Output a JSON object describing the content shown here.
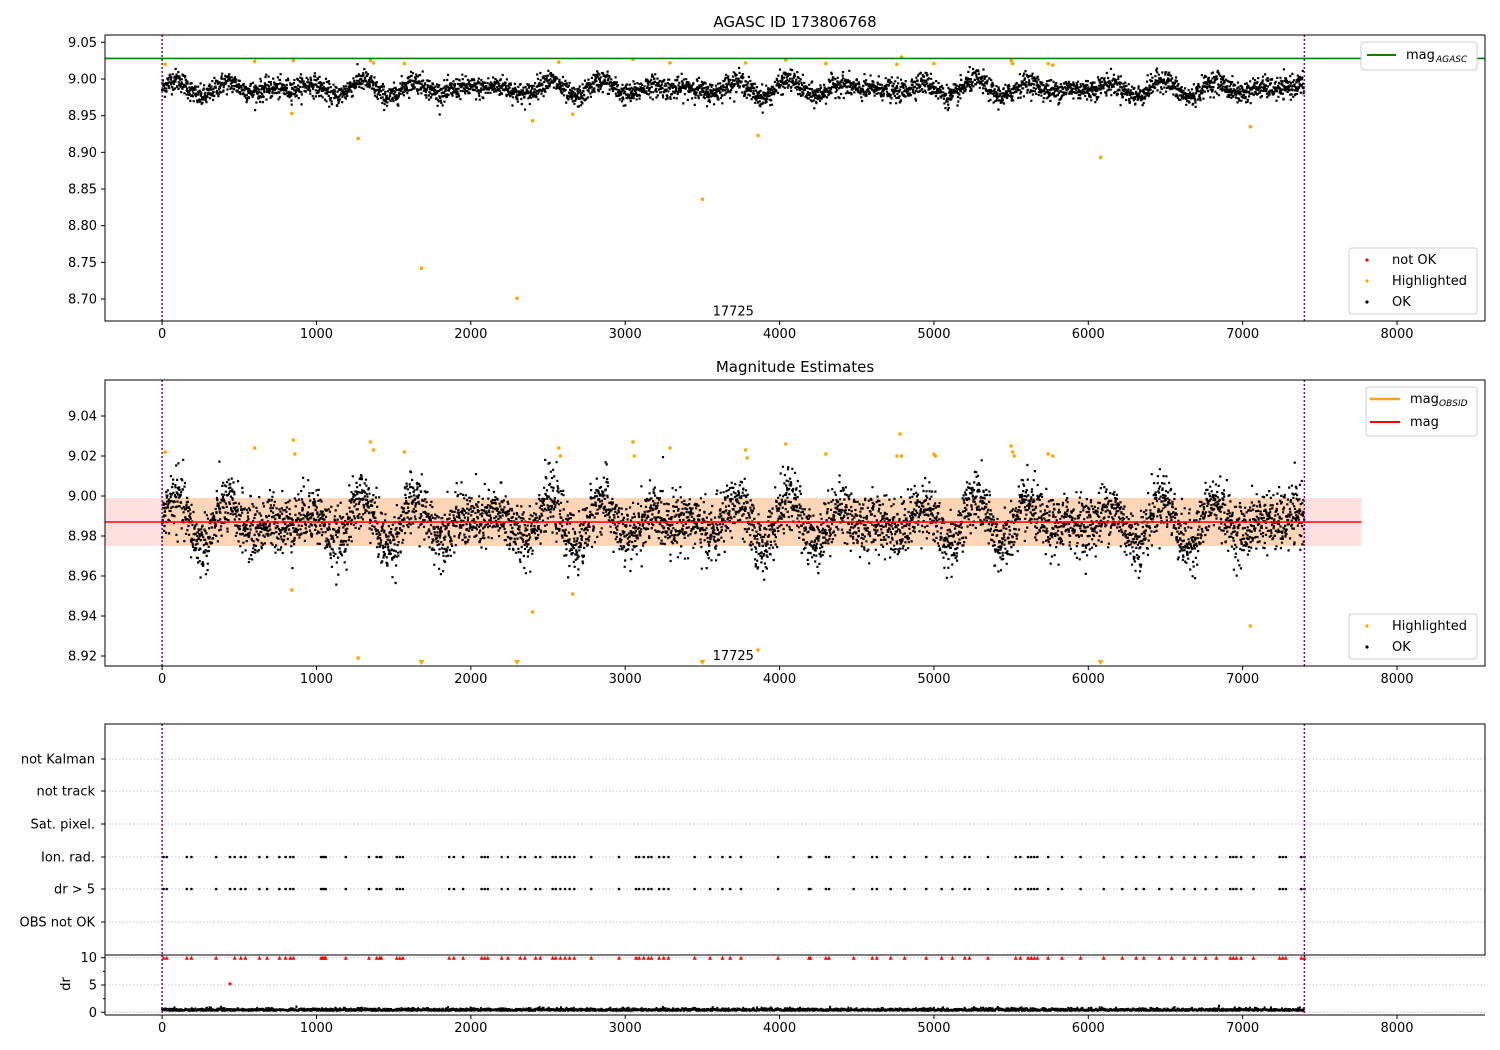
{
  "chart_data": [
    {
      "type": "scatter",
      "title": "AGASC ID 173806768",
      "xlim": [
        -370,
        8570
      ],
      "ylim": [
        8.67,
        9.06
      ],
      "x_ticks": [
        0,
        1000,
        2000,
        3000,
        4000,
        5000,
        6000,
        7000,
        8000
      ],
      "x_tick_labels": [
        "0",
        "1000",
        "2000",
        "3000",
        "4000",
        "5000",
        "6000",
        "7000",
        "8000"
      ],
      "y_ticks": [
        8.7,
        8.75,
        8.8,
        8.85,
        8.9,
        8.95,
        9.0,
        9.05
      ],
      "y_tick_labels": [
        "8.70",
        "8.75",
        "8.80",
        "8.85",
        "8.90",
        "8.95",
        "9.00",
        "9.05"
      ],
      "reference_line": {
        "name": "mag",
        "subscript": "AGASC",
        "y": 9.028,
        "color": "#008000"
      },
      "obs_boundaries": {
        "x": [
          0,
          7400
        ],
        "color": "#800080"
      },
      "annotation": {
        "text": "17725",
        "x": 3700,
        "y": 8.683
      },
      "ok_band": {
        "center": 8.987,
        "amplitude": 0.012,
        "scatter": 0.016,
        "x_range": [
          0,
          7400
        ],
        "approx_points": 4300,
        "color": "#000000"
      },
      "highlighted_points": {
        "color": "#ffa500",
        "x": [
          20,
          600,
          840,
          850,
          1270,
          1680,
          2300,
          2400,
          2660,
          3500,
          3860,
          6080,
          7050,
          1350,
          1370,
          1570,
          2570,
          3050,
          3290,
          3780,
          4040,
          4300,
          4760,
          4790,
          5000,
          5500,
          5510,
          5740,
          5770
        ],
        "y": [
          9.02,
          9.024,
          8.953,
          9.025,
          8.919,
          8.742,
          8.701,
          8.943,
          8.952,
          8.836,
          8.923,
          8.893,
          8.935,
          9.025,
          9.022,
          9.021,
          9.023,
          9.027,
          9.022,
          9.022,
          9.026,
          9.021,
          9.02,
          9.03,
          9.021,
          9.025,
          9.021,
          9.021,
          9.019
        ]
      },
      "legend": {
        "position": "lower-right",
        "entries": [
          "not OK",
          "Highlighted",
          "OK"
        ],
        "colors": [
          "#ff0000",
          "#ffa500",
          "#000000"
        ]
      },
      "legend_upper": {
        "position": "upper-right",
        "base": "mag",
        "subscript": "AGASC"
      }
    },
    {
      "type": "scatter",
      "title": "Magnitude Estimates",
      "xlim": [
        -370,
        8570
      ],
      "ylim": [
        8.915,
        9.058
      ],
      "x_ticks": [
        0,
        1000,
        2000,
        3000,
        4000,
        5000,
        6000,
        7000,
        8000
      ],
      "x_tick_labels": [
        "0",
        "1000",
        "2000",
        "3000",
        "4000",
        "5000",
        "6000",
        "7000",
        "8000"
      ],
      "y_ticks": [
        8.92,
        8.94,
        8.96,
        8.98,
        9.0,
        9.02,
        9.04
      ],
      "y_tick_labels": [
        "8.92",
        "8.94",
        "8.96",
        "8.98",
        "9.00",
        "9.02",
        "9.04"
      ],
      "mag_line": {
        "y": 8.987,
        "x_range": [
          -370,
          7770
        ],
        "color": "#ff0000"
      },
      "mag_band": {
        "y_range": [
          8.975,
          8.999
        ],
        "x_range": [
          -370,
          7770
        ],
        "color": "#ffcccc"
      },
      "mag_obsid_band": {
        "y_range": [
          8.975,
          8.999
        ],
        "x_range": [
          0,
          7400
        ],
        "color": "#ffa500"
      },
      "obs_boundaries": {
        "x": [
          0,
          7400
        ],
        "color": "#800080"
      },
      "annotation": {
        "text": "17725",
        "x": 3700,
        "y": 8.92
      },
      "ok_band": {
        "center": 8.987,
        "amplitude": 0.012,
        "scatter": 0.016,
        "x_range": [
          0,
          7400
        ],
        "approx_points": 5200,
        "color": "#000000"
      },
      "highlighted_points": {
        "color": "#ffa500",
        "x": [
          20,
          600,
          840,
          850,
          860,
          1350,
          1370,
          1570,
          2570,
          2580,
          3050,
          3060,
          3290,
          3780,
          3790,
          4040,
          4300,
          4760,
          4780,
          4790,
          5000,
          5010,
          5500,
          5510,
          5520,
          5740,
          5770,
          1270,
          2400,
          2660,
          3860,
          7050
        ],
        "y": [
          9.022,
          9.024,
          8.953,
          9.028,
          9.021,
          9.027,
          9.023,
          9.022,
          9.024,
          9.02,
          9.027,
          9.02,
          9.024,
          9.023,
          9.019,
          9.026,
          9.021,
          9.02,
          9.031,
          9.02,
          9.021,
          9.02,
          9.025,
          9.022,
          9.02,
          9.021,
          9.02,
          8.919,
          8.942,
          8.951,
          8.923,
          8.935
        ]
      },
      "out_of_range_markers": {
        "x": [
          1680,
          2300,
          3500,
          6080
        ],
        "color": "#ffa500"
      },
      "legend": {
        "position": "lower-right",
        "entries": [
          "Highlighted",
          "OK"
        ],
        "colors": [
          "#ffa500",
          "#000000"
        ]
      },
      "legend_upper": {
        "position": "upper-right",
        "entries": [
          {
            "base": "mag",
            "subscript": "OBSID",
            "color": "#ffa500"
          },
          {
            "base": "mag",
            "subscript": "",
            "color": "#ff0000"
          }
        ]
      }
    },
    {
      "type": "scatter",
      "title": "",
      "xlim": [
        -370,
        8570
      ],
      "categories": [
        "not Kalman",
        "not track",
        "Sat. pixel.",
        "Ion. rad.",
        "dr > 5",
        "OBS not OK"
      ],
      "flag_rows": {
        "Ion. rad.": [
          10,
          30,
          160,
          190,
          350,
          440,
          470,
          510,
          540,
          630,
          680,
          760,
          800,
          830,
          850,
          1030,
          1040,
          1050,
          1060,
          1190,
          1340,
          1390,
          1410,
          1420,
          1520,
          1540,
          1560,
          1860,
          1890,
          1950,
          2070,
          2090,
          2110,
          2200,
          2240,
          2320,
          2350,
          2420,
          2450,
          2530,
          2550,
          2580,
          2610,
          2640,
          2670,
          2780,
          2960,
          3070,
          3090,
          3120,
          3150,
          3170,
          3220,
          3250,
          3280,
          3450,
          3550,
          3630,
          3680,
          3750,
          3990,
          4190,
          4200,
          4300,
          4320,
          4480,
          4600,
          4630,
          4720,
          4810,
          4950,
          5050,
          5120,
          5200,
          5230,
          5350,
          5530,
          5560,
          5610,
          5630,
          5650,
          5670,
          5740,
          5830,
          5950,
          6100,
          6220,
          6310,
          6360,
          6460,
          6540,
          6620,
          6690,
          6760,
          6830,
          6920,
          6940,
          6960,
          6990,
          7070,
          7240,
          7260,
          7280,
          7380,
          7400
        ],
        "dr > 5": [
          10,
          30,
          160,
          190,
          350,
          440,
          470,
          510,
          540,
          630,
          680,
          760,
          800,
          830,
          850,
          1030,
          1040,
          1050,
          1060,
          1190,
          1340,
          1390,
          1410,
          1420,
          1520,
          1540,
          1560,
          1860,
          1890,
          1950,
          2070,
          2090,
          2110,
          2200,
          2240,
          2320,
          2350,
          2420,
          2450,
          2530,
          2550,
          2580,
          2610,
          2640,
          2670,
          2780,
          2960,
          3070,
          3090,
          3120,
          3150,
          3170,
          3220,
          3250,
          3280,
          3450,
          3550,
          3630,
          3680,
          3750,
          3990,
          4190,
          4200,
          4300,
          4320,
          4480,
          4600,
          4630,
          4720,
          4810,
          4950,
          5050,
          5120,
          5200,
          5230,
          5350,
          5530,
          5560,
          5610,
          5630,
          5650,
          5670,
          5740,
          5830,
          5950,
          6100,
          6220,
          6310,
          6360,
          6460,
          6540,
          6620,
          6690,
          6760,
          6830,
          6920,
          6940,
          6960,
          6990,
          7070,
          7240,
          7260,
          7280,
          7380,
          7400
        ]
      },
      "obs_boundaries": {
        "x": [
          0,
          7400
        ],
        "color": "#800080"
      }
    },
    {
      "type": "scatter",
      "title": "",
      "ylabel": "dr",
      "xlim": [
        -370,
        8570
      ],
      "ylim": [
        -0.5,
        10.5
      ],
      "x_ticks": [
        0,
        1000,
        2000,
        3000,
        4000,
        5000,
        6000,
        7000,
        8000
      ],
      "x_tick_labels": [
        "0",
        "1000",
        "2000",
        "3000",
        "4000",
        "5000",
        "6000",
        "7000",
        "8000"
      ],
      "y_ticks": [
        0,
        5,
        10
      ],
      "y_tick_labels": [
        "0",
        "5",
        "10"
      ],
      "clipped_points": {
        "y": 10,
        "color": "#ff0000",
        "x": [
          10,
          30,
          160,
          190,
          350,
          470,
          510,
          540,
          630,
          680,
          760,
          800,
          830,
          850,
          1030,
          1040,
          1050,
          1060,
          1190,
          1340,
          1390,
          1410,
          1420,
          1520,
          1540,
          1560,
          1860,
          1890,
          1950,
          2070,
          2090,
          2110,
          2200,
          2240,
          2320,
          2350,
          2420,
          2450,
          2530,
          2550,
          2580,
          2610,
          2640,
          2670,
          2780,
          2960,
          3070,
          3090,
          3120,
          3150,
          3170,
          3220,
          3250,
          3280,
          3450,
          3550,
          3630,
          3680,
          3750,
          3990,
          4190,
          4200,
          4300,
          4320,
          4480,
          4600,
          4630,
          4720,
          4810,
          4950,
          5050,
          5120,
          5200,
          5230,
          5350,
          5530,
          5560,
          5610,
          5630,
          5650,
          5670,
          5740,
          5830,
          5950,
          6100,
          6220,
          6310,
          6360,
          6460,
          6540,
          6620,
          6690,
          6760,
          6830,
          6920,
          6940,
          6960,
          6990,
          7070,
          7240,
          7260,
          7280,
          7380,
          7400
        ]
      },
      "outlier_point": {
        "x": 440,
        "y": 5.2,
        "color": "#ff0000"
      },
      "baseline_band": {
        "center": 0.3,
        "scatter": 0.25,
        "x_range": [
          0,
          7400
        ],
        "approx_points": 2500,
        "color": "#000000"
      },
      "obs_boundaries": {
        "x": [
          0,
          7400
        ],
        "color": "#800080"
      }
    }
  ]
}
